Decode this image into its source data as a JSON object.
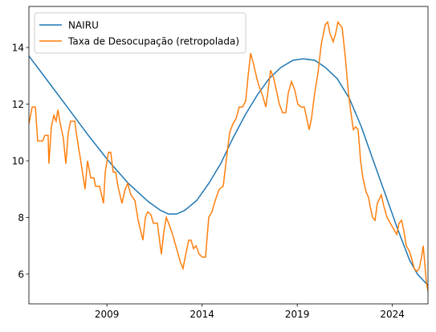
{
  "chart_data": {
    "type": "line",
    "series": [
      {
        "name": "NAIRU",
        "color": "#1f77b4",
        "x": [
          2004.9,
          2005.91,
          2006.97,
          2008.02,
          2009.08,
          2010.13,
          2011.19,
          2011.82,
          2012.24,
          2012.66,
          2013.09,
          2013.72,
          2014.35,
          2014.98,
          2015.62,
          2016.25,
          2016.88,
          2017.52,
          2018.15,
          2018.78,
          2019.33,
          2019.92,
          2020.47,
          2021.1,
          2021.74,
          2022.37,
          2023.0,
          2023.64,
          2024.27,
          2024.9,
          2025.32,
          2025.87
        ],
        "values": [
          13.7,
          12.8,
          11.85,
          10.9,
          10.0,
          9.2,
          8.55,
          8.25,
          8.12,
          8.12,
          8.25,
          8.6,
          9.2,
          9.9,
          10.8,
          11.6,
          12.3,
          12.9,
          13.3,
          13.55,
          13.6,
          13.55,
          13.3,
          12.9,
          12.2,
          11.2,
          10.0,
          8.8,
          7.6,
          6.5,
          6.0,
          5.6
        ]
      },
      {
        "name": "Taxa de Desocupação (retropolada)",
        "color": "#ff7f0e",
        "x": [
          2004.9,
          2005.07,
          2005.24,
          2005.36,
          2005.62,
          2005.74,
          2005.91,
          2005.95,
          2006.08,
          2006.21,
          2006.33,
          2006.42,
          2006.55,
          2006.71,
          2006.84,
          2006.97,
          2007.09,
          2007.31,
          2007.43,
          2007.6,
          2007.85,
          2007.98,
          2008.15,
          2008.32,
          2008.4,
          2008.61,
          2008.82,
          2008.91,
          2009.08,
          2009.2,
          2009.33,
          2009.46,
          2009.58,
          2009.79,
          2009.96,
          2010.09,
          2010.26,
          2010.47,
          2010.64,
          2010.89,
          2011.02,
          2011.14,
          2011.31,
          2011.44,
          2011.65,
          2011.86,
          2011.99,
          2012.12,
          2012.24,
          2012.45,
          2012.66,
          2012.87,
          2013.0,
          2013.17,
          2013.3,
          2013.42,
          2013.55,
          2013.68,
          2013.85,
          2014.01,
          2014.18,
          2014.35,
          2014.52,
          2014.69,
          2014.9,
          2015.11,
          2015.32,
          2015.45,
          2015.62,
          2015.79,
          2015.95,
          2016.12,
          2016.29,
          2016.42,
          2016.55,
          2016.71,
          2016.88,
          2017.01,
          2017.18,
          2017.35,
          2017.47,
          2017.6,
          2017.77,
          2017.9,
          2018.06,
          2018.23,
          2018.4,
          2018.53,
          2018.7,
          2018.87,
          2019.03,
          2019.2,
          2019.37,
          2019.5,
          2019.63,
          2019.75,
          2019.92,
          2020.09,
          2020.26,
          2020.47,
          2020.6,
          2020.72,
          2020.89,
          2021.02,
          2021.14,
          2021.36,
          2021.52,
          2021.69,
          2021.82,
          2021.95,
          2022.07,
          2022.2,
          2022.33,
          2022.45,
          2022.62,
          2022.75,
          2022.83,
          2022.96,
          2023.09,
          2023.21,
          2023.42,
          2023.55,
          2023.72,
          2023.89,
          2024.06,
          2024.23,
          2024.35,
          2024.48,
          2024.61,
          2024.73,
          2024.9,
          2025.03,
          2025.15,
          2025.28,
          2025.41,
          2025.53,
          2025.62,
          2025.7,
          2025.77,
          2025.82,
          2025.87
        ],
        "values": [
          11.3,
          11.9,
          11.9,
          10.7,
          10.7,
          10.9,
          10.9,
          9.9,
          11.2,
          11.6,
          11.4,
          11.8,
          11.3,
          10.8,
          9.9,
          11.0,
          11.4,
          11.4,
          10.8,
          10.1,
          9.0,
          10.0,
          9.4,
          9.4,
          9.1,
          9.1,
          8.5,
          9.6,
          10.3,
          10.3,
          9.6,
          9.6,
          9.1,
          8.5,
          9.0,
          9.2,
          8.8,
          8.6,
          7.9,
          7.2,
          8.0,
          8.2,
          8.1,
          7.8,
          7.8,
          6.7,
          7.5,
          8.0,
          7.8,
          7.4,
          6.9,
          6.4,
          6.2,
          6.8,
          7.2,
          7.2,
          6.9,
          7.0,
          6.7,
          6.6,
          6.6,
          8.0,
          8.2,
          8.6,
          9.0,
          9.1,
          10.3,
          11.0,
          11.3,
          11.5,
          11.9,
          11.9,
          12.1,
          13.0,
          13.8,
          13.4,
          12.9,
          12.6,
          12.3,
          11.9,
          12.5,
          13.2,
          12.9,
          12.5,
          12.0,
          11.7,
          11.7,
          12.4,
          12.8,
          12.5,
          12.0,
          11.9,
          11.9,
          11.5,
          11.1,
          11.5,
          12.4,
          13.1,
          14.1,
          14.8,
          14.9,
          14.5,
          14.2,
          14.5,
          14.9,
          14.7,
          13.7,
          12.4,
          11.7,
          11.1,
          11.2,
          11.1,
          10.0,
          9.4,
          8.9,
          8.7,
          8.4,
          8.0,
          7.9,
          8.5,
          8.8,
          8.4,
          8.0,
          7.8,
          7.6,
          7.4,
          7.8,
          7.9,
          7.5,
          7.0,
          6.8,
          6.5,
          6.2,
          6.1,
          6.2,
          6.6,
          7.0,
          6.4,
          5.8,
          5.6,
          5.4
        ]
      }
    ],
    "xlim": [
      2004.9,
      2025.87
    ],
    "xticks": [
      2009,
      2014,
      2019,
      2024
    ],
    "ylim": [
      4.95,
      15.45
    ],
    "yticks": [
      6,
      8,
      10,
      12,
      14
    ],
    "legend": "upper left"
  }
}
